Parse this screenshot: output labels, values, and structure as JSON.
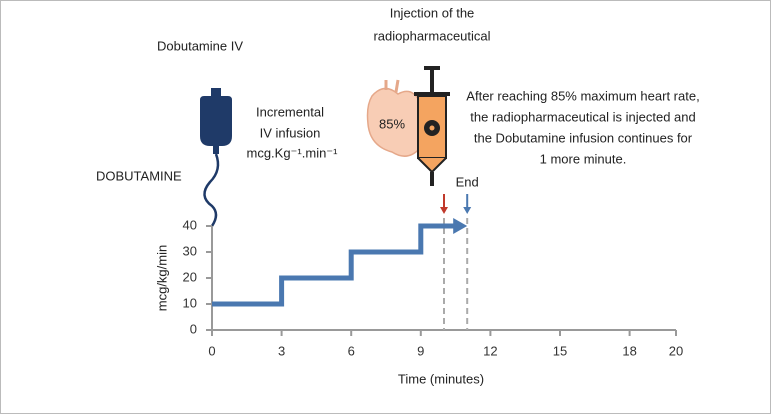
{
  "chart_data": {
    "type": "line",
    "x": [
      0,
      3,
      3,
      6,
      6,
      9,
      9,
      11
    ],
    "values": [
      10,
      10,
      20,
      20,
      30,
      30,
      40,
      40
    ],
    "color": "#4a78b0",
    "xlim": [
      0,
      20
    ],
    "xticks": [
      0,
      3,
      6,
      9,
      12,
      15,
      18,
      20
    ],
    "ylim": [
      0,
      40
    ],
    "yticks": [
      0,
      10,
      20,
      30,
      40
    ],
    "xlabel": "Time (minutes)",
    "ylabel": "mcg/kg/min",
    "grid": false,
    "vlines": [
      {
        "x": 10,
        "color": "#c0392b"
      },
      {
        "x": 11,
        "color": "#4a78b0",
        "label": "End"
      }
    ]
  },
  "annotations": {
    "iv_title": "Dobutamine IV",
    "drug": "DOBUTAMINE",
    "infusion": [
      "Incremental",
      "IV infusion",
      "mcg.Kg⁻¹.min⁻¹"
    ],
    "injection": [
      "Injection of the",
      "radiopharmaceutical"
    ],
    "heart_rate": "85%",
    "note": [
      "After reaching 85% maximum heart rate,",
      "the radiopharmaceutical is injected and",
      "the Dobutamine infusion continues for",
      "1 more minute."
    ]
  }
}
